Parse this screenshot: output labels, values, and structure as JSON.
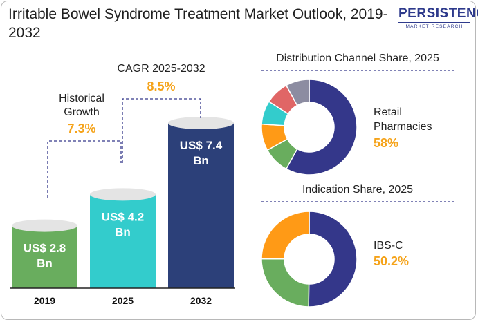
{
  "header": {
    "title": "Irritable Bowel Syndrome Treatment Market Outlook, 2019-2032",
    "logo_main": "PERSISTENCE",
    "logo_sub": "MARKET RESEARCH"
  },
  "chart_data": [
    {
      "type": "bar",
      "categories": [
        "2019",
        "2025",
        "2032"
      ],
      "values": [
        2.8,
        4.2,
        7.4
      ],
      "value_labels": [
        "US$ 2.8 Bn",
        "US$ 4.2 Bn",
        "US$ 7.4 Bn"
      ],
      "colors": [
        "#69ad5e",
        "#33cccc",
        "#2c4079"
      ],
      "annotations": [
        {
          "label": "Historical Growth",
          "value": "7.3%"
        },
        {
          "label": "CAGR 2025-2032",
          "value": "8.5%"
        }
      ],
      "accent_color": "#f5a31a"
    },
    {
      "type": "pie",
      "title": "Distribution Channel Share, 2025",
      "slices": [
        {
          "name": "Retail Pharmacies",
          "value": 58,
          "color": "#34378a"
        },
        {
          "name": "",
          "value": 9,
          "color": "#69ad5e"
        },
        {
          "name": "",
          "value": 9,
          "color": "#ff9a16"
        },
        {
          "name": "",
          "value": 8,
          "color": "#33cccc"
        },
        {
          "name": "",
          "value": 8,
          "color": "#e06666"
        },
        {
          "name": "",
          "value": 8,
          "color": "#8c8ca1"
        }
      ],
      "callout_label": "Retail Pharmacies",
      "callout_value": "58%"
    },
    {
      "type": "pie",
      "title": "Indication Share, 2025",
      "slices": [
        {
          "name": "IBS-C",
          "value": 50.2,
          "color": "#34378a"
        },
        {
          "name": "",
          "value": 24.9,
          "color": "#69ad5e"
        },
        {
          "name": "",
          "value": 24.9,
          "color": "#ff9a16"
        }
      ],
      "callout_label": "IBS-C",
      "callout_value": "50.2%"
    }
  ]
}
